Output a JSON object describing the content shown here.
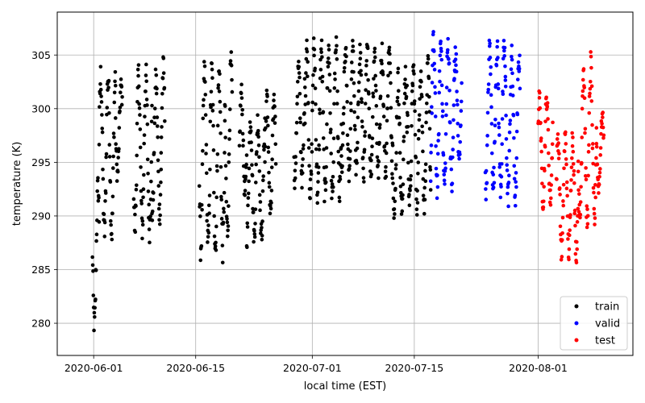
{
  "chart_data": {
    "type": "scatter",
    "title": "",
    "xlabel": "local time (EST)",
    "ylabel": "temperature (K)",
    "xlim": [
      "2020-05-27",
      "2020-08-14"
    ],
    "ylim": [
      277,
      309
    ],
    "xticks": [
      "2020-06-01",
      "2020-06-15",
      "2020-07-01",
      "2020-07-15",
      "2020-08-01"
    ],
    "yticks": [
      280,
      285,
      290,
      295,
      300,
      305
    ],
    "grid": true,
    "legend_position": "bottom-right",
    "series": [
      {
        "name": "train",
        "color": "#000000",
        "clusters": [
          {
            "start": "2020-05-31T20:00",
            "end": "2020-06-01T18:00",
            "min": 278.5,
            "max": 294
          },
          {
            "start": "2020-06-01T18:00",
            "end": "2020-06-04T00:00",
            "min": 287,
            "max": 304.5
          },
          {
            "start": "2020-06-04T00:00",
            "end": "2020-06-04T22:00",
            "min": 293,
            "max": 303
          },
          {
            "start": "2020-06-06T12:00",
            "end": "2020-06-09T00:00",
            "min": 287.5,
            "max": 304.5
          },
          {
            "start": "2020-06-09T00:00",
            "end": "2020-06-10T06:00",
            "min": 289,
            "max": 304
          },
          {
            "start": "2020-06-10T06:00",
            "end": "2020-06-10T18:00",
            "min": 290,
            "max": 305
          },
          {
            "start": "2020-06-15T12:00",
            "end": "2020-06-19T00:00",
            "min": 285.5,
            "max": 305
          },
          {
            "start": "2020-06-19T00:00",
            "end": "2020-06-20T00:00",
            "min": 287,
            "max": 305.5
          },
          {
            "start": "2020-06-21T00:00",
            "end": "2020-06-22T00:00",
            "min": 291,
            "max": 302.5
          },
          {
            "start": "2020-06-22T00:00",
            "end": "2020-06-24T12:00",
            "min": 287,
            "max": 300
          },
          {
            "start": "2020-06-24T12:00",
            "end": "2020-06-26T00:00",
            "min": 289,
            "max": 302
          },
          {
            "start": "2020-06-28T12:00",
            "end": "2020-06-30T00:00",
            "min": 292.5,
            "max": 305
          },
          {
            "start": "2020-06-30T00:00",
            "end": "2020-07-05T00:00",
            "min": 290.5,
            "max": 307
          },
          {
            "start": "2020-07-05T00:00",
            "end": "2020-07-12T00:00",
            "min": 293,
            "max": 306.5
          },
          {
            "start": "2020-07-12T00:00",
            "end": "2020-07-14T00:00",
            "min": 289,
            "max": 304
          },
          {
            "start": "2020-07-14T00:00",
            "end": "2020-07-17T06:00",
            "min": 290,
            "max": 305
          }
        ]
      },
      {
        "name": "valid",
        "color": "#0000ff",
        "clusters": [
          {
            "start": "2020-07-17T06:00",
            "end": "2020-07-20T12:00",
            "min": 291.5,
            "max": 307.5
          },
          {
            "start": "2020-07-20T12:00",
            "end": "2020-07-21T12:00",
            "min": 294,
            "max": 306
          },
          {
            "start": "2020-07-24T18:00",
            "end": "2020-07-27T12:00",
            "min": 291.5,
            "max": 307
          },
          {
            "start": "2020-07-27T12:00",
            "end": "2020-07-29T12:00",
            "min": 290.5,
            "max": 306
          }
        ]
      },
      {
        "name": "test",
        "color": "#ff0000",
        "clusters": [
          {
            "start": "2020-08-01T00:00",
            "end": "2020-08-03T00:00",
            "min": 290.5,
            "max": 302
          },
          {
            "start": "2020-08-03T12:00",
            "end": "2020-08-06T12:00",
            "min": 285.5,
            "max": 298.5
          },
          {
            "start": "2020-08-06T12:00",
            "end": "2020-08-09T00:00",
            "min": 288,
            "max": 305.5
          },
          {
            "start": "2020-08-09T00:00",
            "end": "2020-08-10T00:00",
            "min": 292,
            "max": 300
          }
        ]
      }
    ]
  }
}
